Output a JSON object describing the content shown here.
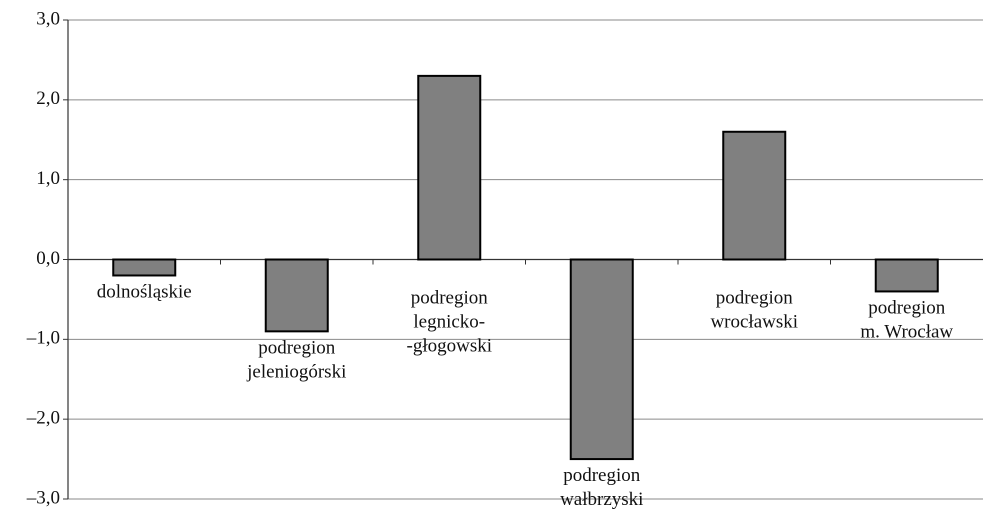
{
  "chart_data": {
    "type": "bar",
    "categories": [
      [
        "dolnośląskie"
      ],
      [
        "podregion",
        "jeleniogórski"
      ],
      [
        "podregion",
        "legnicko-",
        "-głogowski"
      ],
      [
        "podregion",
        "wałbrzyski"
      ],
      [
        "podregion",
        "wrocławski"
      ],
      [
        "podregion",
        "m. Wrocław"
      ]
    ],
    "values": [
      -0.2,
      -0.9,
      2.3,
      -2.5,
      1.6,
      -0.4
    ],
    "color": "#808080",
    "ylim": [
      -3,
      3
    ],
    "yticks": [
      {
        "value": -3,
        "label": "–3,0"
      },
      {
        "value": -2,
        "label": "–2,0"
      },
      {
        "value": -1,
        "label": "–1,0"
      },
      {
        "value": 0,
        "label": "0,0"
      },
      {
        "value": 1,
        "label": "1,0"
      },
      {
        "value": 2,
        "label": "2,0"
      },
      {
        "value": 3,
        "label": "3,0"
      }
    ],
    "grid": true
  }
}
